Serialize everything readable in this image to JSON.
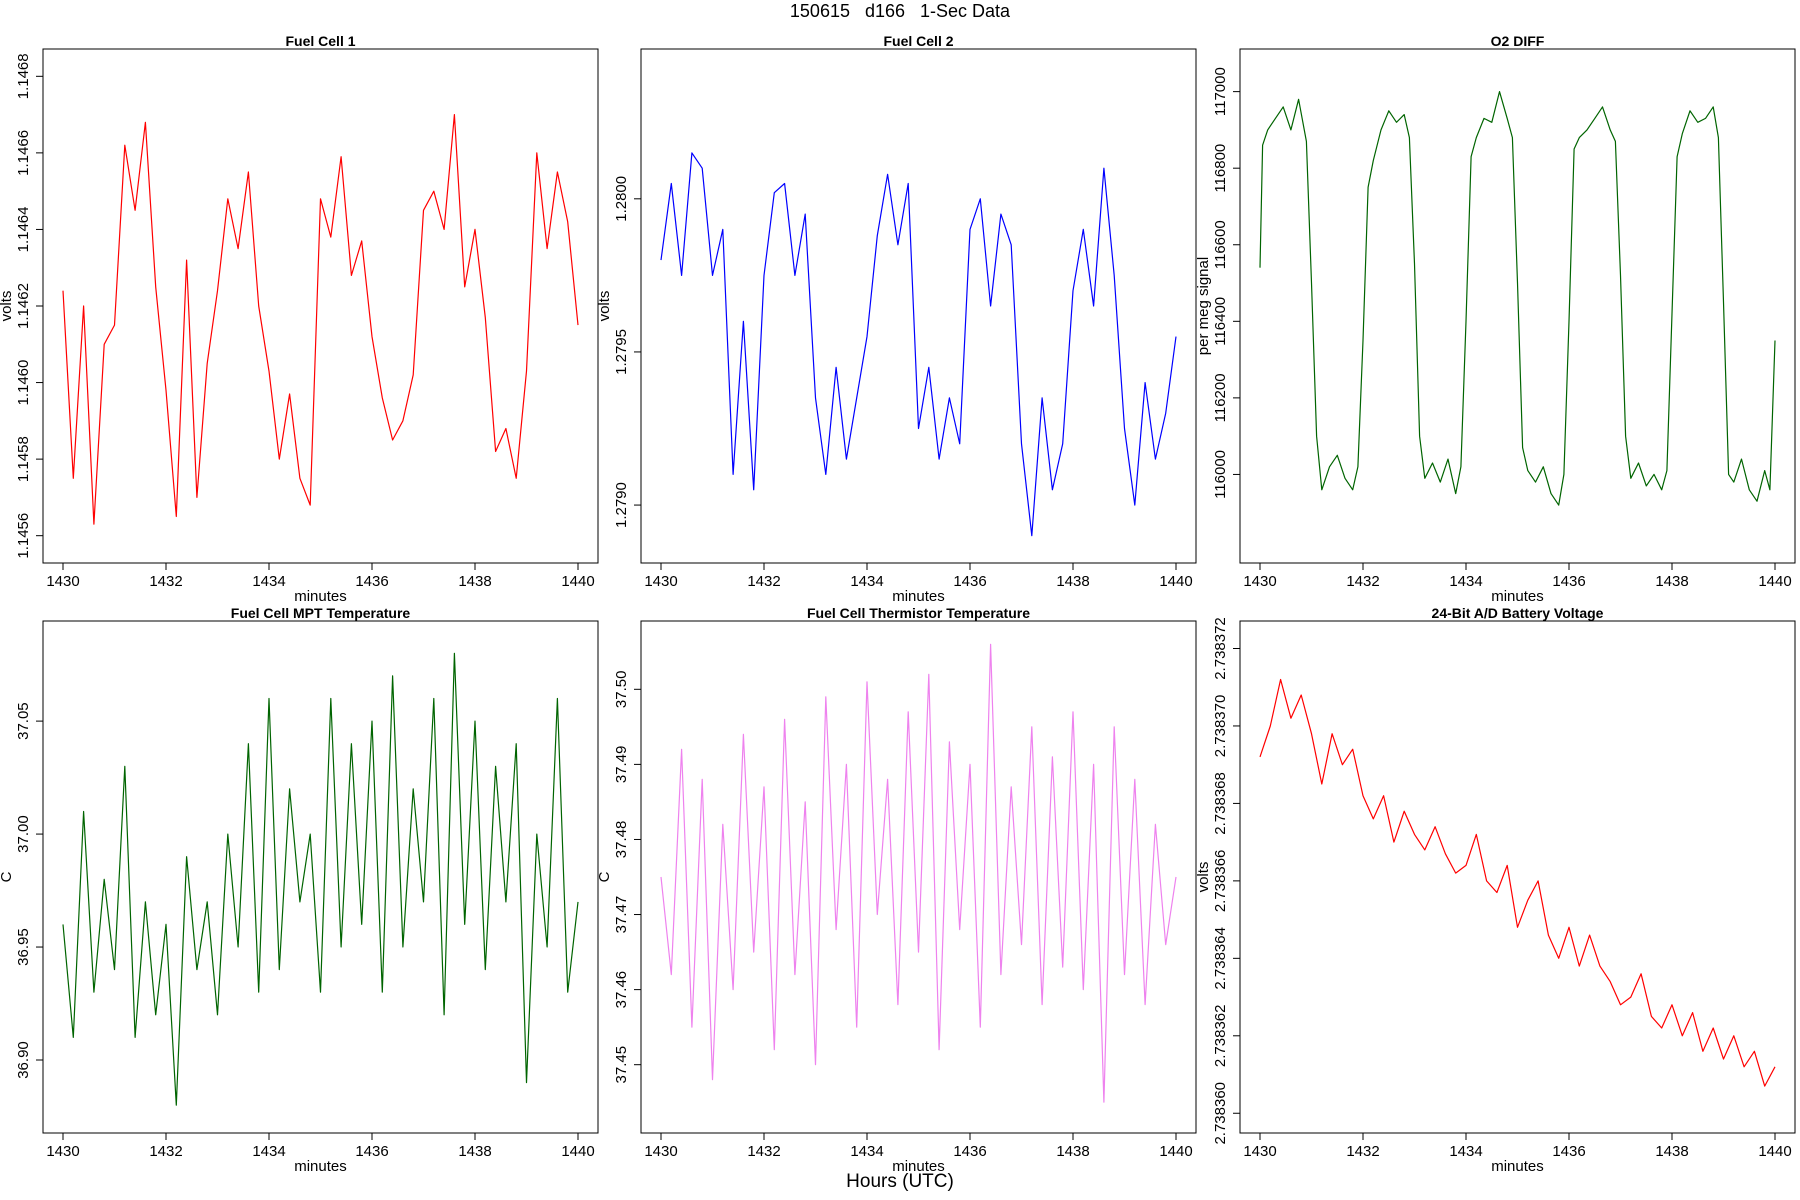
{
  "figure": {
    "title": "150615   d166   1-Sec Data",
    "xlabel": "Hours (UTC)"
  },
  "colors": {
    "red": "#ff0000",
    "blue": "#0000ff",
    "darkgreen": "#006400",
    "violet": "#ee82ee"
  },
  "chart_data": [
    {
      "type": "line",
      "title": "Fuel Cell 1",
      "xlabel": "minutes",
      "ylabel": "volts",
      "xlim": [
        1430,
        1440
      ],
      "ylim": [
        1.14556,
        1.14684
      ],
      "xticks": [
        "1430",
        "1432",
        "1434",
        "1436",
        "1438",
        "1440"
      ],
      "yticks": [
        "1.1456",
        "1.1458",
        "1.1460",
        "1.1462",
        "1.1464",
        "1.1466",
        "1.1468"
      ],
      "color": "#ff0000",
      "x": [
        1430,
        1430.2,
        1430.4,
        1430.6,
        1430.8,
        1431,
        1431.2,
        1431.4,
        1431.6,
        1431.8,
        1432,
        1432.2,
        1432.4,
        1432.6,
        1432.8,
        1433,
        1433.2,
        1433.4,
        1433.6,
        1433.8,
        1434,
        1434.2,
        1434.4,
        1434.6,
        1434.8,
        1435,
        1435.2,
        1435.4,
        1435.6,
        1435.8,
        1436,
        1436.2,
        1436.4,
        1436.6,
        1436.8,
        1437,
        1437.2,
        1437.4,
        1437.6,
        1437.8,
        1438,
        1438.2,
        1438.4,
        1438.6,
        1438.8,
        1439,
        1439.2,
        1439.4,
        1439.6,
        1439.8,
        1440
      ],
      "y": [
        1.14624,
        1.14575,
        1.1462,
        1.14563,
        1.1461,
        1.14615,
        1.14662,
        1.14645,
        1.14668,
        1.14625,
        1.14598,
        1.14565,
        1.14632,
        1.1457,
        1.14605,
        1.14624,
        1.14648,
        1.14635,
        1.14655,
        1.1462,
        1.14603,
        1.1458,
        1.14597,
        1.14575,
        1.14568,
        1.14648,
        1.14638,
        1.14659,
        1.14628,
        1.14637,
        1.14612,
        1.14596,
        1.14585,
        1.1459,
        1.14602,
        1.14645,
        1.1465,
        1.1464,
        1.1467,
        1.14625,
        1.1464,
        1.14617,
        1.14582,
        1.14588,
        1.14575,
        1.14603,
        1.1466,
        1.14635,
        1.14655,
        1.14642,
        1.14615
      ]
    },
    {
      "type": "line",
      "title": "Fuel Cell 2",
      "xlabel": "minutes",
      "ylabel": "volts",
      "xlim": [
        1430,
        1440
      ],
      "ylim": [
        1.27885,
        1.28045
      ],
      "xticks": [
        "1430",
        "1432",
        "1434",
        "1436",
        "1438",
        "1440"
      ],
      "yticks": [
        "1.2790",
        "1.2795",
        "1.2800"
      ],
      "color": "#0000ff",
      "x": [
        1430,
        1430.2,
        1430.4,
        1430.6,
        1430.8,
        1431,
        1431.2,
        1431.4,
        1431.6,
        1431.8,
        1432,
        1432.2,
        1432.4,
        1432.6,
        1432.8,
        1433,
        1433.2,
        1433.4,
        1433.6,
        1433.8,
        1434,
        1434.2,
        1434.4,
        1434.6,
        1434.8,
        1435,
        1435.2,
        1435.4,
        1435.6,
        1435.8,
        1436,
        1436.2,
        1436.4,
        1436.6,
        1436.8,
        1437,
        1437.2,
        1437.4,
        1437.6,
        1437.8,
        1438,
        1438.2,
        1438.4,
        1438.6,
        1438.8,
        1439,
        1439.2,
        1439.4,
        1439.6,
        1439.8,
        1440
      ],
      "y": [
        1.2798,
        1.28005,
        1.27975,
        1.28015,
        1.2801,
        1.27975,
        1.2799,
        1.2791,
        1.2796,
        1.27905,
        1.27975,
        1.28002,
        1.28005,
        1.27975,
        1.27995,
        1.27935,
        1.2791,
        1.27945,
        1.27915,
        1.27935,
        1.27955,
        1.27988,
        1.28008,
        1.27985,
        1.28005,
        1.27925,
        1.27945,
        1.27915,
        1.27935,
        1.2792,
        1.2799,
        1.28,
        1.27965,
        1.27995,
        1.27985,
        1.2792,
        1.2789,
        1.27935,
        1.27905,
        1.2792,
        1.2797,
        1.2799,
        1.27965,
        1.2801,
        1.27975,
        1.27925,
        1.279,
        1.2794,
        1.27915,
        1.2793,
        1.27955
      ]
    },
    {
      "type": "line",
      "title": "O2 DIFF",
      "xlabel": "minutes",
      "ylabel": "per meg signal",
      "xlim": [
        1430,
        1440
      ],
      "ylim": [
        115800,
        117080
      ],
      "xticks": [
        "1430",
        "1432",
        "1434",
        "1436",
        "1438",
        "1440"
      ],
      "yticks": [
        "116000",
        "116200",
        "116400",
        "116600",
        "116800",
        "117000"
      ],
      "color": "#006400",
      "x": [
        1430,
        1430.05,
        1430.15,
        1430.3,
        1430.45,
        1430.6,
        1430.75,
        1430.9,
        1431,
        1431.1,
        1431.2,
        1431.35,
        1431.5,
        1431.65,
        1431.8,
        1431.9,
        1432,
        1432.1,
        1432.2,
        1432.35,
        1432.5,
        1432.65,
        1432.8,
        1432.9,
        1433,
        1433.1,
        1433.2,
        1433.35,
        1433.5,
        1433.65,
        1433.8,
        1433.9,
        1434,
        1434.1,
        1434.2,
        1434.35,
        1434.5,
        1434.65,
        1434.8,
        1434.9,
        1435,
        1435.1,
        1435.2,
        1435.35,
        1435.5,
        1435.65,
        1435.8,
        1435.9,
        1436,
        1436.1,
        1436.2,
        1436.35,
        1436.5,
        1436.65,
        1436.8,
        1436.9,
        1437,
        1437.1,
        1437.2,
        1437.35,
        1437.5,
        1437.65,
        1437.8,
        1437.9,
        1438,
        1438.1,
        1438.2,
        1438.35,
        1438.5,
        1438.65,
        1438.8,
        1438.9,
        1439,
        1439.1,
        1439.2,
        1439.35,
        1439.5,
        1439.65,
        1439.8,
        1439.9,
        1440
      ],
      "y": [
        116540,
        116860,
        116900,
        116930,
        116960,
        116900,
        116980,
        116870,
        116500,
        116100,
        115960,
        116020,
        116050,
        115990,
        115960,
        116020,
        116350,
        116750,
        116820,
        116900,
        116950,
        116920,
        116940,
        116880,
        116550,
        116100,
        115990,
        116030,
        115980,
        116040,
        115950,
        116020,
        116400,
        116830,
        116880,
        116930,
        116920,
        117000,
        116930,
        116880,
        116500,
        116070,
        116010,
        115980,
        116020,
        115950,
        115920,
        116000,
        116400,
        116850,
        116880,
        116900,
        116930,
        116960,
        116900,
        116870,
        116520,
        116100,
        115990,
        116030,
        115970,
        116000,
        115960,
        116010,
        116420,
        116830,
        116890,
        116950,
        116920,
        116930,
        116960,
        116880,
        116450,
        116000,
        115980,
        116040,
        115960,
        115930,
        116010,
        115960,
        116350
      ]
    },
    {
      "type": "line",
      "title": "Fuel Cell MPT Temperature",
      "xlabel": "minutes",
      "ylabel": "C",
      "xlim": [
        1430,
        1440
      ],
      "ylim": [
        36.873,
        37.089
      ],
      "xticks": [
        "1430",
        "1432",
        "1434",
        "1436",
        "1438",
        "1440"
      ],
      "yticks": [
        "36.90",
        "36.95",
        "37.00",
        "37.05"
      ],
      "color": "#006400",
      "x": [
        1430,
        1430.2,
        1430.4,
        1430.6,
        1430.8,
        1431,
        1431.2,
        1431.4,
        1431.6,
        1431.8,
        1432,
        1432.2,
        1432.4,
        1432.6,
        1432.8,
        1433,
        1433.2,
        1433.4,
        1433.6,
        1433.8,
        1434,
        1434.2,
        1434.4,
        1434.6,
        1434.8,
        1435,
        1435.2,
        1435.4,
        1435.6,
        1435.8,
        1436,
        1436.2,
        1436.4,
        1436.6,
        1436.8,
        1437,
        1437.2,
        1437.4,
        1437.6,
        1437.8,
        1438,
        1438.2,
        1438.4,
        1438.6,
        1438.8,
        1439,
        1439.2,
        1439.4,
        1439.6,
        1439.8,
        1440
      ],
      "y": [
        36.96,
        36.91,
        37.01,
        36.93,
        36.98,
        36.94,
        37.03,
        36.91,
        36.97,
        36.92,
        36.96,
        36.88,
        36.99,
        36.94,
        36.97,
        36.92,
        37.0,
        36.95,
        37.04,
        36.93,
        37.06,
        36.94,
        37.02,
        36.97,
        37.0,
        36.93,
        37.06,
        36.95,
        37.04,
        36.96,
        37.05,
        36.93,
        37.07,
        36.95,
        37.02,
        36.97,
        37.06,
        36.92,
        37.08,
        36.96,
        37.05,
        36.94,
        37.03,
        36.97,
        37.04,
        36.89,
        37.0,
        36.95,
        37.06,
        36.93,
        36.97
      ]
    },
    {
      "type": "line",
      "title": "Fuel Cell Thermistor Temperature",
      "xlabel": "minutes",
      "ylabel": "C",
      "xlim": [
        1430,
        1440
      ],
      "ylim": [
        37.4425,
        37.5075
      ],
      "xticks": [
        "1430",
        "1432",
        "1434",
        "1436",
        "1438",
        "1440"
      ],
      "yticks": [
        "37.45",
        "37.46",
        "37.47",
        "37.48",
        "37.49",
        "37.50"
      ],
      "color": "#ee82ee",
      "x": [
        1430,
        1430.2,
        1430.4,
        1430.6,
        1430.8,
        1431,
        1431.2,
        1431.4,
        1431.6,
        1431.8,
        1432,
        1432.2,
        1432.4,
        1432.6,
        1432.8,
        1433,
        1433.2,
        1433.4,
        1433.6,
        1433.8,
        1434,
        1434.2,
        1434.4,
        1434.6,
        1434.8,
        1435,
        1435.2,
        1435.4,
        1435.6,
        1435.8,
        1436,
        1436.2,
        1436.4,
        1436.6,
        1436.8,
        1437,
        1437.2,
        1437.4,
        1437.6,
        1437.8,
        1438,
        1438.2,
        1438.4,
        1438.6,
        1438.8,
        1439,
        1439.2,
        1439.4,
        1439.6,
        1439.8,
        1440
      ],
      "y": [
        37.475,
        37.462,
        37.492,
        37.455,
        37.488,
        37.448,
        37.482,
        37.46,
        37.494,
        37.465,
        37.487,
        37.452,
        37.496,
        37.462,
        37.485,
        37.45,
        37.499,
        37.468,
        37.49,
        37.455,
        37.501,
        37.47,
        37.488,
        37.458,
        37.497,
        37.465,
        37.502,
        37.452,
        37.493,
        37.468,
        37.49,
        37.455,
        37.506,
        37.462,
        37.487,
        37.466,
        37.495,
        37.458,
        37.491,
        37.463,
        37.497,
        37.46,
        37.49,
        37.445,
        37.495,
        37.462,
        37.488,
        37.458,
        37.482,
        37.466,
        37.475
      ]
    },
    {
      "type": "line",
      "title": "24-Bit A/D Battery Voltage",
      "xlabel": "minutes",
      "ylabel": "volts",
      "xlim": [
        1430,
        1440
      ],
      "ylim": [
        2.7383598,
        2.7383724
      ],
      "xticks": [
        "1430",
        "1432",
        "1434",
        "1436",
        "1438",
        "1440"
      ],
      "yticks": [
        "2.738360",
        "2.738362",
        "2.738364",
        "2.738366",
        "2.738368",
        "2.738370",
        "2.738372"
      ],
      "color": "#ff0000",
      "x": [
        1430,
        1430.2,
        1430.4,
        1430.6,
        1430.8,
        1431,
        1431.2,
        1431.4,
        1431.6,
        1431.8,
        1432,
        1432.2,
        1432.4,
        1432.6,
        1432.8,
        1433,
        1433.2,
        1433.4,
        1433.6,
        1433.8,
        1434,
        1434.2,
        1434.4,
        1434.6,
        1434.8,
        1435,
        1435.2,
        1435.4,
        1435.6,
        1435.8,
        1436,
        1436.2,
        1436.4,
        1436.6,
        1436.8,
        1437,
        1437.2,
        1437.4,
        1437.6,
        1437.8,
        1438,
        1438.2,
        1438.4,
        1438.6,
        1438.8,
        1439,
        1439.2,
        1439.4,
        1439.6,
        1439.8,
        1440
      ],
      "y": [
        2.7383692,
        2.73837,
        2.7383712,
        2.7383702,
        2.7383708,
        2.7383698,
        2.7383685,
        2.7383698,
        2.738369,
        2.7383694,
        2.7383682,
        2.7383676,
        2.7383682,
        2.738367,
        2.7383678,
        2.7383672,
        2.7383668,
        2.7383674,
        2.7383667,
        2.7383662,
        2.7383664,
        2.7383672,
        2.738366,
        2.7383657,
        2.7383664,
        2.7383648,
        2.7383655,
        2.738366,
        2.7383646,
        2.738364,
        2.7383648,
        2.7383638,
        2.7383646,
        2.7383638,
        2.7383634,
        2.7383628,
        2.738363,
        2.7383636,
        2.7383625,
        2.7383622,
        2.7383628,
        2.738362,
        2.7383626,
        2.7383616,
        2.7383622,
        2.7383614,
        2.738362,
        2.7383612,
        2.7383616,
        2.7383607,
        2.7383612
      ]
    }
  ]
}
